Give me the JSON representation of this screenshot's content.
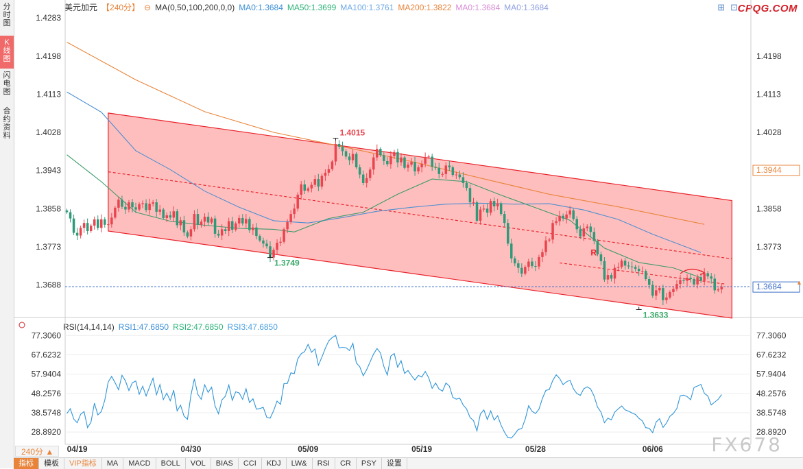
{
  "left_tabs": [
    {
      "label": "分时图",
      "active": false
    },
    {
      "label": "K线图",
      "active": true
    },
    {
      "label": "闪电图",
      "active": false
    },
    {
      "label": "合约资料",
      "active": false
    }
  ],
  "header": {
    "symbol": "美元加元",
    "period": "【240分】",
    "ma_params": "MA(0,50,100,200,0,0)",
    "ma0": "MA0:1.3684",
    "ma50": "MA50:1.3699",
    "ma100": "MA100:1.3761",
    "ma200": "MA200:1.3822",
    "ma0b": "MA0:1.3684",
    "ma0c": "MA0:1.3684"
  },
  "brand": "CPQG.COM",
  "watermark": "FX678",
  "rsi_header": {
    "title": "RSI(14,14,14)",
    "rsi1": "RSI1:47.6850",
    "rsi2": "RSI2:47.6850",
    "rsi3": "RSI3:47.6850"
  },
  "period_selector": "240分",
  "toolbar": [
    "指标",
    "模板",
    "VIP指标",
    "MA",
    "MACD",
    "BOLL",
    "VOL",
    "BIAS",
    "CCI",
    "KDJ",
    "LW&",
    "RSI",
    "CR",
    "PSY",
    "设置"
  ],
  "colors": {
    "up": "#e8454f",
    "down": "#2e9a7a",
    "channel_fill": "#ffb3b3",
    "channel_line": "#e8222a",
    "ma50": "#3a9a6a",
    "ma100": "#4d8fd0",
    "ma200": "#e8843a",
    "current": "#3b6fc6"
  },
  "chart_data": [
    {
      "type": "candlestick",
      "title": "美元加元 240分",
      "y_ticks": [
        "1.4283",
        "1.4198",
        "1.4113",
        "1.4028",
        "1.3943",
        "1.3858",
        "1.3773",
        "1.3688"
      ],
      "right_y_ticks": [
        "1.4198",
        "1.4113",
        "1.4028",
        "1.3943",
        "1.3858",
        "1.3773",
        "1.3688"
      ],
      "ylim": [
        1.362,
        1.43
      ],
      "x_ticks": [
        "04/19",
        "04/30",
        "05/09",
        "05/19",
        "05/28",
        "06/06"
      ],
      "x_tick_index": [
        3,
        36,
        70,
        103,
        136,
        170
      ],
      "annotations": [
        {
          "text": "1.4015",
          "index": 78,
          "value": 1.4015,
          "color": "#e8454f"
        },
        {
          "text": "1.3749",
          "index": 59,
          "value": 1.3749,
          "color": "#3aaa6a"
        },
        {
          "text": "1.3633",
          "index": 166,
          "value": 1.3633,
          "color": "#3aaa6a"
        },
        {
          "text": "R",
          "index": 152,
          "value": 1.3754,
          "color": "#e8222a"
        }
      ],
      "price_tags": [
        {
          "text": "1.3944",
          "value": 1.3944,
          "color": "#e8843a"
        },
        {
          "text": "1.3684",
          "value": 1.3684,
          "color": "#3b6fc6"
        }
      ],
      "channel": {
        "upper": [
          [
            12,
            1.4071
          ],
          [
            193,
            1.3876
          ]
        ],
        "lower": [
          [
            12,
            1.3808
          ],
          [
            193,
            1.3614
          ]
        ],
        "mid": [
          [
            12,
            1.394
          ],
          [
            193,
            1.3746
          ]
        ]
      },
      "target_line": [
        [
          143,
          1.3737
        ],
        [
          191,
          1.369
        ]
      ],
      "current_price": 1.3684,
      "ma_lines": [
        {
          "name": "MA200",
          "points": [
            [
              0,
              1.4229
            ],
            [
              20,
              1.4145
            ],
            [
              40,
              1.4074
            ],
            [
              60,
              1.4028
            ],
            [
              80,
              1.3996
            ],
            [
              100,
              1.3963
            ],
            [
              120,
              1.3926
            ],
            [
              140,
              1.389
            ],
            [
              160,
              1.3862
            ],
            [
              185,
              1.3823
            ]
          ]
        },
        {
          "name": "MA100",
          "points": [
            [
              0,
              1.4118
            ],
            [
              10,
              1.4073
            ],
            [
              20,
              1.3987
            ],
            [
              30,
              1.3945
            ],
            [
              40,
              1.3897
            ],
            [
              50,
              1.3861
            ],
            [
              60,
              1.3831
            ],
            [
              70,
              1.3826
            ],
            [
              80,
              1.3838
            ],
            [
              90,
              1.3852
            ],
            [
              100,
              1.3861
            ],
            [
              110,
              1.3868
            ],
            [
              120,
              1.387
            ],
            [
              130,
              1.3868
            ],
            [
              140,
              1.3869
            ],
            [
              150,
              1.3855
            ],
            [
              160,
              1.3834
            ],
            [
              170,
              1.3801
            ],
            [
              184,
              1.376
            ]
          ]
        },
        {
          "name": "MA50",
          "points": [
            [
              0,
              1.3978
            ],
            [
              10,
              1.3918
            ],
            [
              20,
              1.385
            ],
            [
              30,
              1.383
            ],
            [
              40,
              1.3821
            ],
            [
              50,
              1.3814
            ],
            [
              60,
              1.3812
            ],
            [
              66,
              1.3806
            ],
            [
              76,
              1.3836
            ],
            [
              86,
              1.385
            ],
            [
              96,
              1.389
            ],
            [
              106,
              1.3924
            ],
            [
              116,
              1.3918
            ],
            [
              126,
              1.3888
            ],
            [
              136,
              1.386
            ],
            [
              146,
              1.3832
            ],
            [
              156,
              1.377
            ],
            [
              166,
              1.3738
            ],
            [
              176,
              1.3726
            ],
            [
              184,
              1.3704
            ]
          ]
        }
      ],
      "closes": [
        1.385,
        1.3836,
        1.3804,
        1.3798,
        1.3815,
        1.3826,
        1.3808,
        1.382,
        1.3834,
        1.3815,
        1.3834,
        1.3822,
        1.3823,
        1.3838,
        1.386,
        1.3878,
        1.3862,
        1.3856,
        1.3872,
        1.3861,
        1.3856,
        1.3868,
        1.387,
        1.3855,
        1.3869,
        1.3872,
        1.3851,
        1.3856,
        1.3837,
        1.3843,
        1.3838,
        1.3852,
        1.3821,
        1.3832,
        1.3805,
        1.3796,
        1.3812,
        1.3846,
        1.3822,
        1.3829,
        1.384,
        1.3827,
        1.3836,
        1.3802,
        1.3798,
        1.3812,
        1.3808,
        1.383,
        1.3811,
        1.3825,
        1.3837,
        1.3825,
        1.3835,
        1.381,
        1.3816,
        1.3797,
        1.3787,
        1.378,
        1.3774,
        1.3749,
        1.3766,
        1.3782,
        1.3784,
        1.3812,
        1.3828,
        1.3846,
        1.3858,
        1.3889,
        1.3912,
        1.3898,
        1.3903,
        1.3911,
        1.3924,
        1.3907,
        1.3931,
        1.3938,
        1.3946,
        1.3963,
        1.4002,
        1.3996,
        1.3986,
        1.3974,
        1.3966,
        1.398,
        1.395,
        1.3934,
        1.3915,
        1.3926,
        1.3945,
        1.3972,
        1.3991,
        1.3977,
        1.3964,
        1.3957,
        1.3975,
        1.3984,
        1.3961,
        1.3972,
        1.3949,
        1.3956,
        1.3962,
        1.3941,
        1.395,
        1.3958,
        1.3973,
        1.3974,
        1.3951,
        1.3949,
        1.3935,
        1.3935,
        1.3954,
        1.395,
        1.3933,
        1.3934,
        1.3928,
        1.3915,
        1.3904,
        1.3872,
        1.3872,
        1.3831,
        1.3856,
        1.3858,
        1.3849,
        1.3875,
        1.3863,
        1.387,
        1.3846,
        1.3826,
        1.378,
        1.3747,
        1.3736,
        1.3726,
        1.3713,
        1.3728,
        1.374,
        1.373,
        1.3729,
        1.375,
        1.3761,
        1.3787,
        1.3789,
        1.3826,
        1.383,
        1.3842,
        1.3836,
        1.3845,
        1.3854,
        1.3835,
        1.3812,
        1.3796,
        1.3814,
        1.3818,
        1.3806,
        1.3786,
        1.3756,
        1.3741,
        1.37,
        1.371,
        1.3702,
        1.3726,
        1.3728,
        1.3742,
        1.3731,
        1.3729,
        1.3728,
        1.3724,
        1.3719,
        1.3719,
        1.3701,
        1.3688,
        1.3664,
        1.3676,
        1.3681,
        1.3654,
        1.366,
        1.3672,
        1.3679,
        1.369,
        1.3699,
        1.3697,
        1.3704,
        1.3701,
        1.3689,
        1.3705,
        1.3697,
        1.3714,
        1.3707,
        1.3702,
        1.3676,
        1.3678,
        1.3684
      ],
      "ohlc_note": "candles derived from sequential closes"
    },
    {
      "type": "line",
      "title": "RSI(14,14,14)",
      "y_ticks": [
        "77.3060",
        "67.6232",
        "57.9404",
        "48.2576",
        "38.5748",
        "28.8920"
      ],
      "ylim": [
        25.5,
        79.5
      ],
      "series": [
        {
          "name": "RSI1",
          "values": [
            38.2,
            40.6,
            35.4,
            33.6,
            37.8,
            39.2,
            31.1,
            33.9,
            43.4,
            37.5,
            39.2,
            44.9,
            54.0,
            56.8,
            53.6,
            50.1,
            57.4,
            54.6,
            49.7,
            53.6,
            54.5,
            47.9,
            51.9,
            47.0,
            51.5,
            55.9,
            47.6,
            52.7,
            45.2,
            48.4,
            44.6,
            49.9,
            39.5,
            42.4,
            36.9,
            35.3,
            47.3,
            55.6,
            47.8,
            45.3,
            52.6,
            48.8,
            51.4,
            42.0,
            38.1,
            45.0,
            46.9,
            52.5,
            44.8,
            49.1,
            48.5,
            45.3,
            50.6,
            43.7,
            45.6,
            40.4,
            40.7,
            41.3,
            36.3,
            35.9,
            39.6,
            44.4,
            42.8,
            53.2,
            53.3,
            58.6,
            58.2,
            65.6,
            68.2,
            69.3,
            72.9,
            68.9,
            70.6,
            62.4,
            66.5,
            70.9,
            74.6,
            76.3,
            77.4,
            71.1,
            71.4,
            71.2,
            69.8,
            73.4,
            63.6,
            61.7,
            57.1,
            60.2,
            64.1,
            68.0,
            70.8,
            68.6,
            61.8,
            57.5,
            67.0,
            68.3,
            61.4,
            64.7,
            58.3,
            59.8,
            57.2,
            55.0,
            57.3,
            56.5,
            59.3,
            56.1,
            50.8,
            53.5,
            50.5,
            49.4,
            53.5,
            52.0,
            46.3,
            45.4,
            45.9,
            42.5,
            40.5,
            36.2,
            34.7,
            29.5,
            37.9,
            40.0,
            35.2,
            39.5,
            34.9,
            37.1,
            32.3,
            28.8,
            26.1,
            25.9,
            27.9,
            30.2,
            30.6,
            35.3,
            42.1,
            39.3,
            38.2,
            40.4,
            45.8,
            49.8,
            50.2,
            54.8,
            57.6,
            55.8,
            52.7,
            54.1,
            54.9,
            50.6,
            48.2,
            47.3,
            50.6,
            51.6,
            50.5,
            46.9,
            41.4,
            38.9,
            33.6,
            35.9,
            35.0,
            38.9,
            40.5,
            42.0,
            40.0,
            39.4,
            38.5,
            37.7,
            35.8,
            34.5,
            31.1,
            30.8,
            28.6,
            33.9,
            35.6,
            31.2,
            33.4,
            36.8,
            38.2,
            40.7,
            47.1,
            47.4,
            46.7,
            45.1,
            51.3,
            52.0,
            52.8,
            48.3,
            47.0,
            42.5,
            43.9,
            45.3,
            47.7
          ]
        }
      ]
    }
  ]
}
